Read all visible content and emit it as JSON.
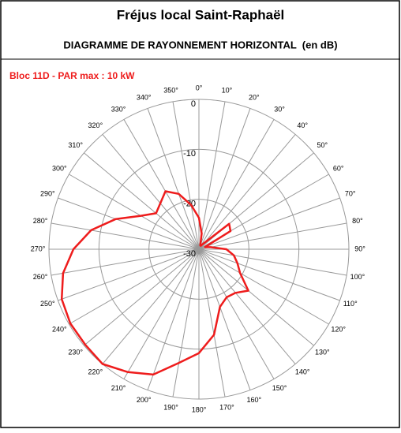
{
  "chart_data": {
    "type": "polar",
    "title": "Fréjus local Saint-Raphaël",
    "subtitle": "DIAGRAMME DE RAYONNEMENT HORIZONTAL  (en dB)",
    "categories": [
      "0°",
      "10°",
      "20°",
      "30°",
      "40°",
      "50°",
      "60°",
      "70°",
      "80°",
      "90°",
      "100°",
      "110°",
      "120°",
      "130°",
      "140°",
      "150°",
      "160°",
      "170°",
      "180°",
      "190°",
      "200°",
      "210°",
      "220°",
      "230°",
      "240°",
      "250°",
      "260°",
      "270°",
      "280°",
      "290°",
      "300°",
      "310°",
      "320°",
      "330°",
      "340°",
      "350°"
    ],
    "series": [
      {
        "name": "Bloc 11D - PAR max : 10 kW",
        "color": "#ee1c1c",
        "values": [
          -23.7,
          -26.8,
          -29.2,
          -29.2,
          -28.4,
          -22.1,
          -22.7,
          -28.7,
          -27.6,
          -24.5,
          -22.9,
          -21.8,
          -20.5,
          -17.1,
          -18.6,
          -18.9,
          -17.7,
          -12.6,
          -9.2,
          -6.9,
          -3.3,
          -1.6,
          0,
          -0.3,
          -0.3,
          -0.8,
          -2.4,
          -4.9,
          -8.1,
          -12.3,
          -16.6,
          -18.8,
          -18,
          -16.6,
          -18.2,
          -21
        ]
      }
    ],
    "ylim": [
      -30,
      0
    ],
    "yticks": [
      0,
      -10,
      -20,
      -30
    ],
    "grid": true
  }
}
